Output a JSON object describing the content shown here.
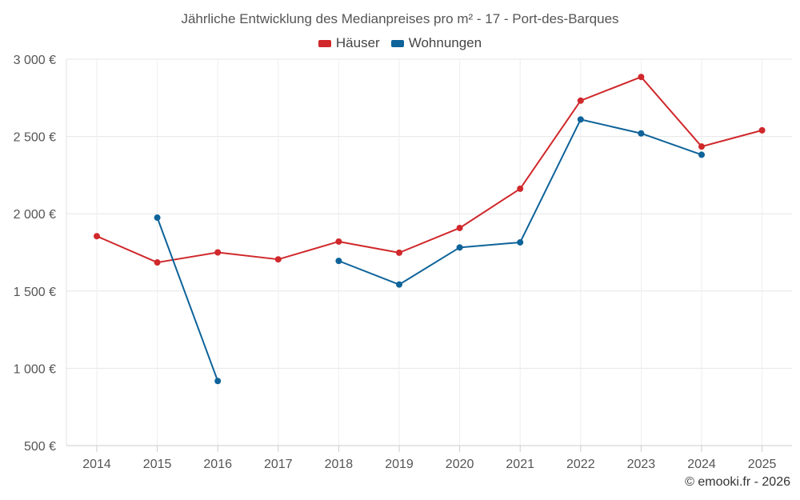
{
  "chart_data": {
    "type": "line",
    "title": "Jährliche Entwicklung des Medianpreises pro m² - 17 - Port-des-Barques",
    "xlabel": "",
    "ylabel": "",
    "categories": [
      "2014",
      "2015",
      "2016",
      "2017",
      "2018",
      "2019",
      "2020",
      "2021",
      "2022",
      "2023",
      "2024",
      "2025"
    ],
    "ylim": [
      500,
      3000
    ],
    "yticks": [
      500,
      1000,
      1500,
      2000,
      2500,
      3000
    ],
    "ytick_labels": [
      "500 €",
      "1 000 €",
      "1 500 €",
      "2 000 €",
      "2 500 €",
      "3 000 €"
    ],
    "grid": true,
    "legend_position": "top-center",
    "series": [
      {
        "name": "Häuser",
        "color": "#d0282b",
        "values": [
          1855,
          1685,
          1750,
          1705,
          1820,
          1748,
          1908,
          2162,
          2732,
          2885,
          2435,
          2540
        ]
      },
      {
        "name": "Wohnungen",
        "color": "#0e6399",
        "values": [
          null,
          1975,
          918,
          null,
          1695,
          1542,
          1782,
          1815,
          2610,
          2520,
          2382,
          null
        ]
      }
    ]
  },
  "credit": "© emooki.fr - 2026"
}
